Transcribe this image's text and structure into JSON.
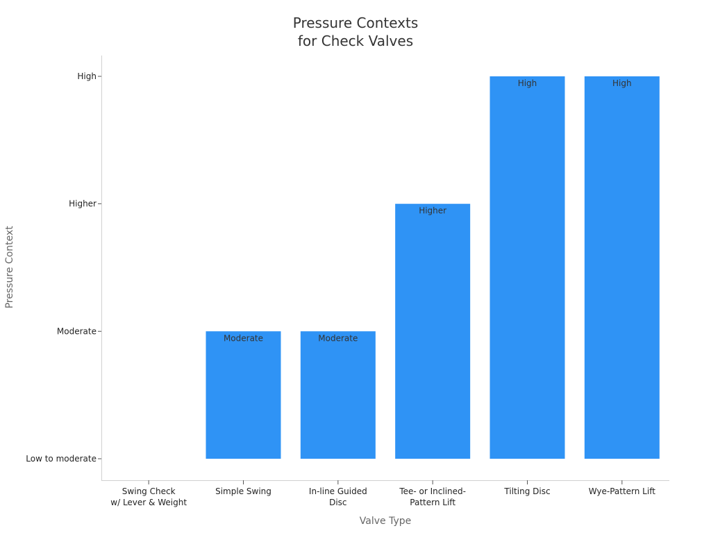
{
  "chart_data": {
    "type": "bar",
    "title_lines": [
      "Pressure Contexts",
      "for Check Valves"
    ],
    "xlabel": "Valve Type",
    "ylabel": "Pressure Context",
    "y_levels": [
      "Low to moderate",
      "Moderate",
      "Higher",
      "High"
    ],
    "categories": [
      [
        "Swing Check",
        "w/ Lever & Weight"
      ],
      [
        "Simple Swing"
      ],
      [
        "In-line Guided",
        "Disc"
      ],
      [
        "Tee- or Inclined-",
        "Pattern Lift"
      ],
      [
        "Tilting Disc"
      ],
      [
        "Wye-Pattern Lift"
      ]
    ],
    "values": [
      "Low to moderate",
      "Moderate",
      "Moderate",
      "Higher",
      "High",
      "High"
    ],
    "data_labels": [
      "",
      "Moderate",
      "Moderate",
      "Higher",
      "High",
      "High"
    ],
    "bar_color": "#2f93f5",
    "grid": false,
    "legend": "none"
  }
}
